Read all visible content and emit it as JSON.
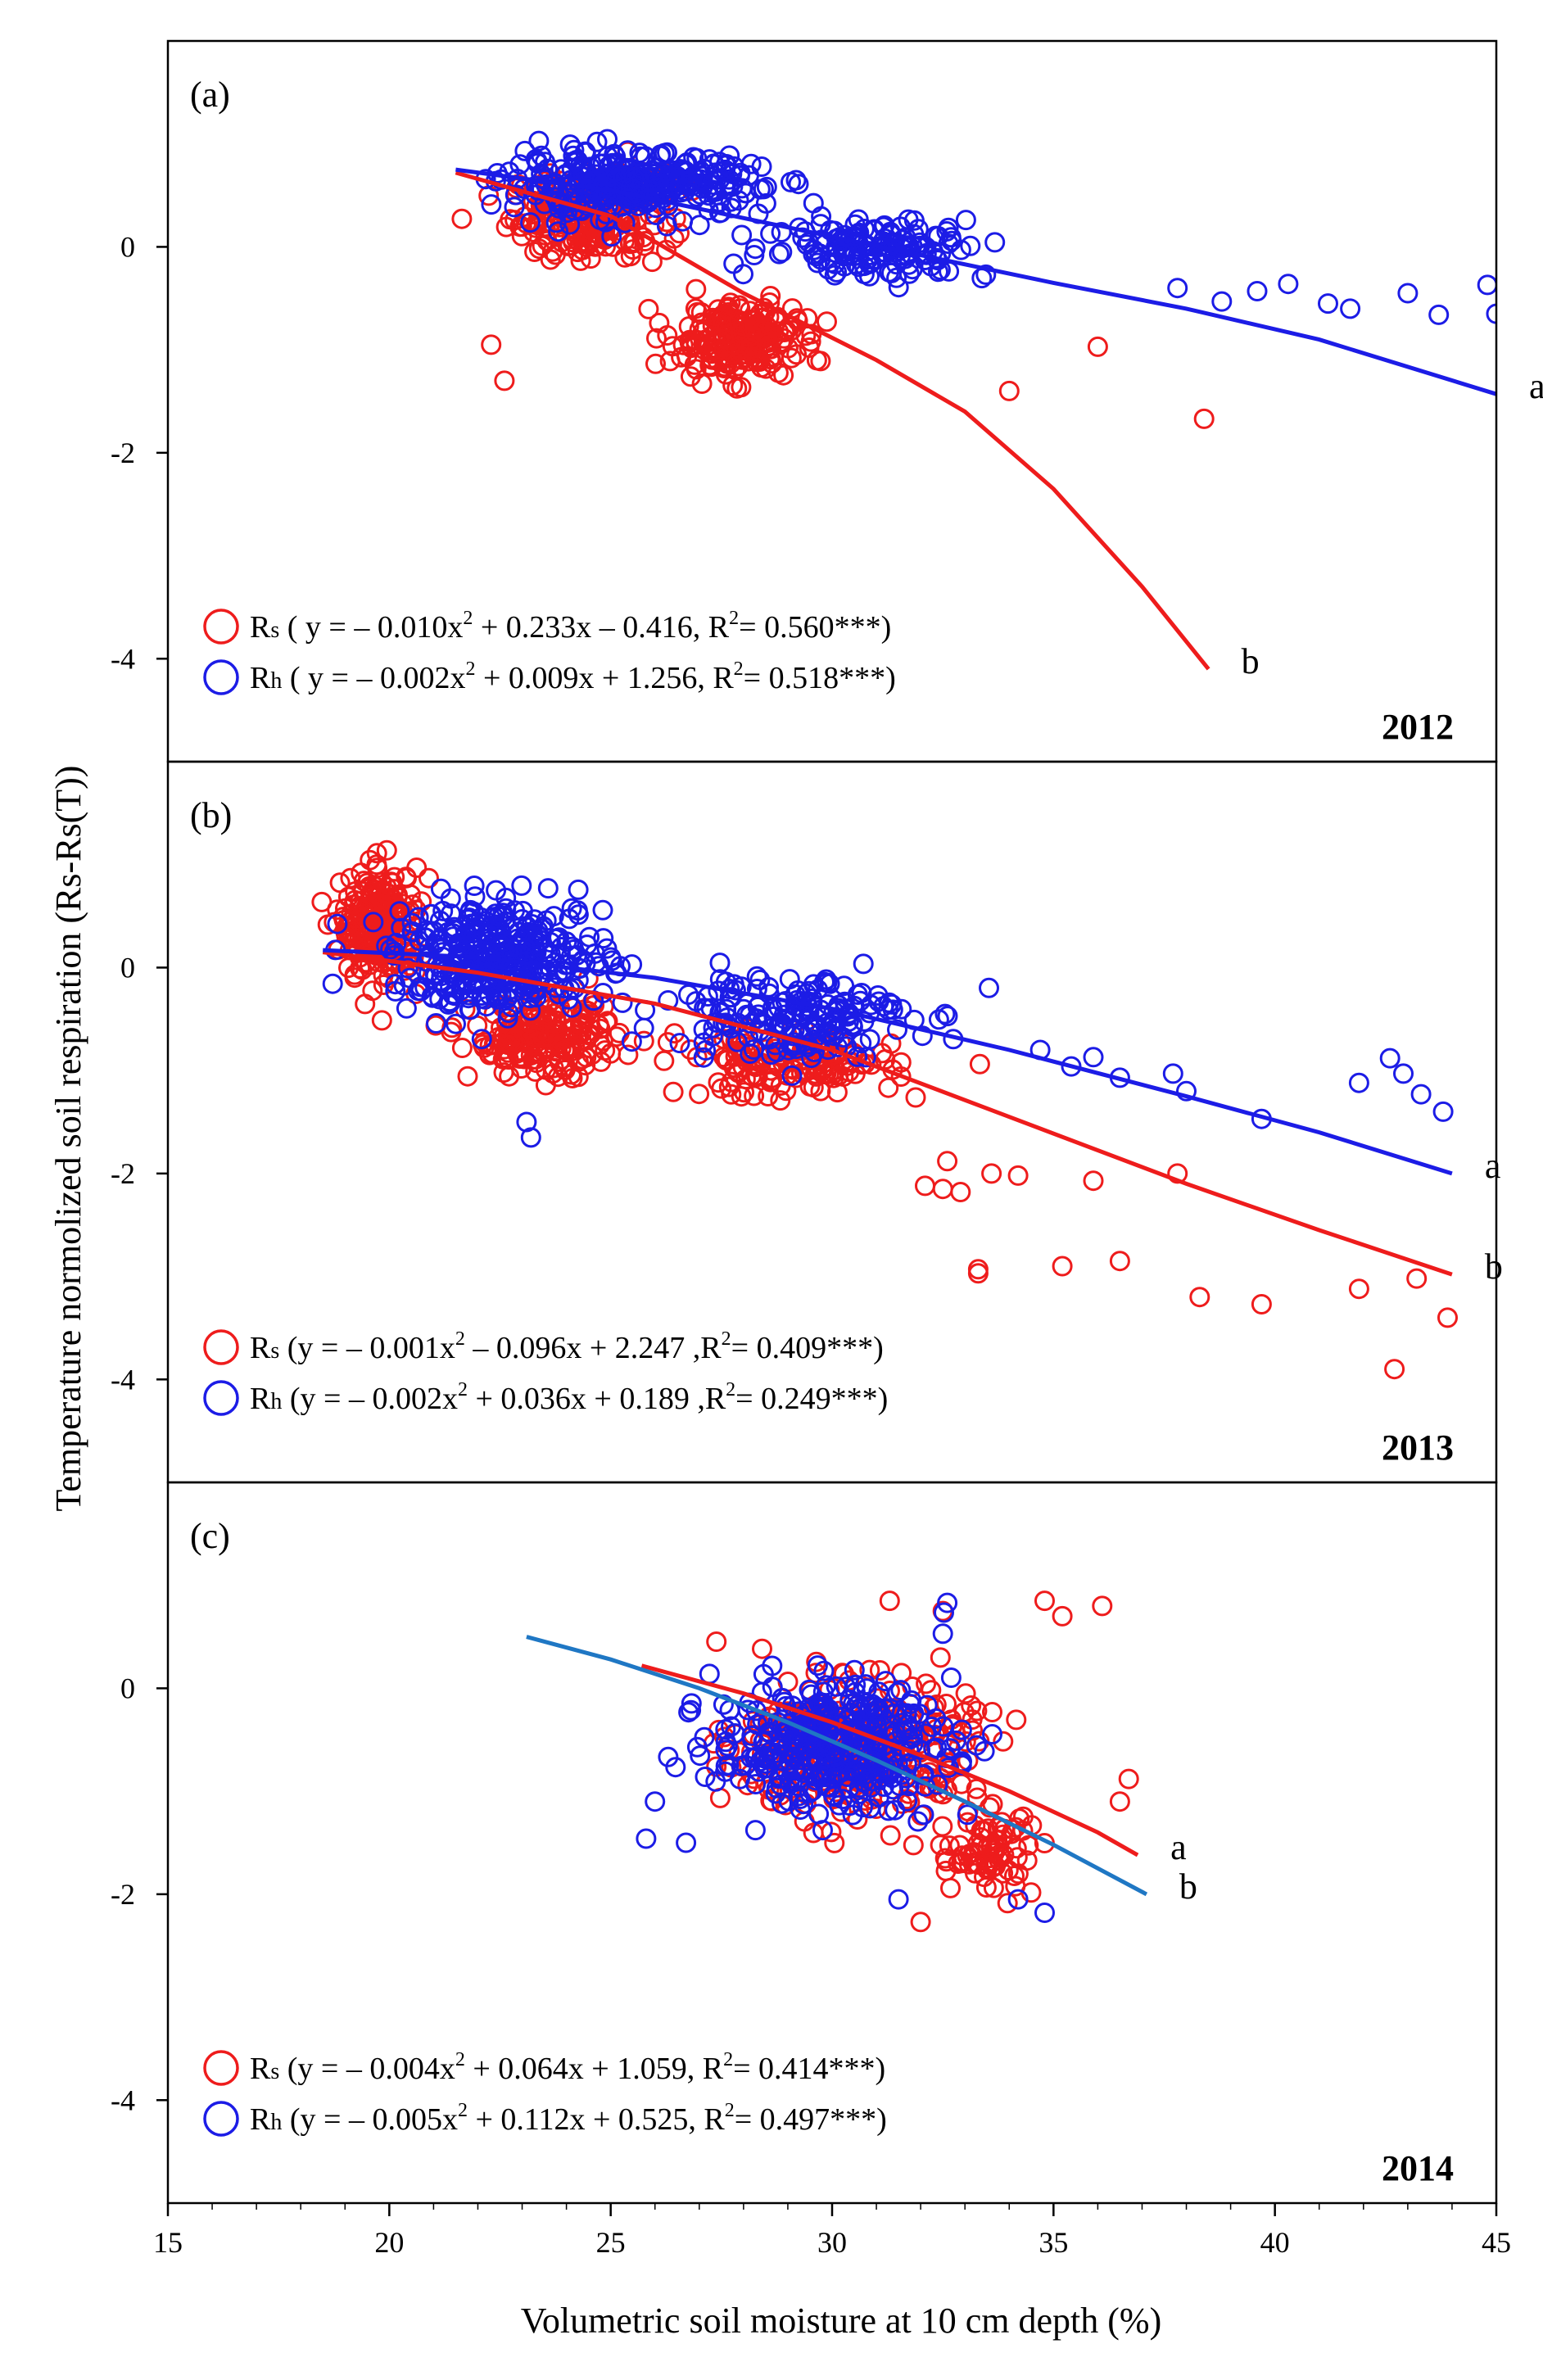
{
  "chart_data": {
    "type": "scatter",
    "x_axis": {
      "label": "Volumetric soil moisture at 10 cm depth (%)",
      "range": [
        15,
        45
      ],
      "ticks": [
        15,
        20,
        25,
        30,
        35,
        40,
        45
      ],
      "tick_labels": [
        "15",
        "20",
        "25",
        "30",
        "35",
        "40",
        "45"
      ]
    },
    "y_axis": {
      "label": "Temperature normolized soil respiration (Rs-Rs(T))",
      "range": [
        -5,
        2
      ],
      "ticks": [
        -4,
        -2,
        0
      ],
      "tick_labels": [
        "-4",
        "-2",
        "0"
      ]
    },
    "colors": {
      "Rs": "#ee1c1c",
      "Rh": "#1c1ce6",
      "Rh_fit_2014": "#1f77c4"
    },
    "panels": [
      {
        "id": "a",
        "label": "(a)",
        "year": "2012",
        "legend": [
          {
            "series": "Rs",
            "prefix": "R",
            "sub": "s",
            "text_before": " ( y = – 0.010x",
            "text_after": " + 0.233x – 0.416, R",
            "text_end": "= 0.560***)"
          },
          {
            "series": "Rh",
            "prefix": "R",
            "sub": "h",
            "text_before": " ( y = – 0.002x",
            "text_after": " + 0.009x + 1.256, R",
            "text_end": "= 0.518***)"
          }
        ],
        "fits": [
          {
            "series": "Rs",
            "letter": "b",
            "x_range": [
              21.5,
              38.5
            ],
            "points": [
              [
                21.5,
                0.72
              ],
              [
                25,
                0.3
              ],
              [
                28,
                -0.45
              ],
              [
                31,
                -1.1
              ],
              [
                33,
                -1.6
              ],
              [
                35,
                -2.35
              ],
              [
                37,
                -3.3
              ],
              [
                38.5,
                -4.1
              ]
            ]
          },
          {
            "series": "Rh",
            "letter": "a",
            "x_range": [
              21.5,
              45
            ],
            "points": [
              [
                21.5,
                0.75
              ],
              [
                25,
                0.55
              ],
              [
                30,
                0.1
              ],
              [
                35,
                -0.35
              ],
              [
                38,
                -0.6
              ],
              [
                41,
                -0.9
              ],
              [
                45,
                -1.43
              ]
            ]
          }
        ],
        "clusters": [
          {
            "series": "Rs",
            "cx": 24.5,
            "cy": 0.3,
            "sx": 1.6,
            "sy": 0.35,
            "n": 220
          },
          {
            "series": "Rs",
            "cx": 27.8,
            "cy": -0.9,
            "sx": 1.3,
            "sy": 0.3,
            "n": 220
          },
          {
            "series": "Rh",
            "cx": 25.5,
            "cy": 0.6,
            "sx": 2.6,
            "sy": 0.25,
            "n": 320
          },
          {
            "series": "Rh",
            "cx": 31,
            "cy": 0.0,
            "sx": 2.3,
            "sy": 0.25,
            "n": 150
          }
        ],
        "extra_points": [
          {
            "series": "Rs",
            "x": 38.4,
            "y": -1.67
          },
          {
            "series": "Rs",
            "x": 34.0,
            "y": -1.4
          },
          {
            "series": "Rs",
            "x": 36.0,
            "y": -0.97
          },
          {
            "series": "Rs",
            "x": 22.6,
            "y": -1.3
          },
          {
            "series": "Rs",
            "x": 22.3,
            "y": -0.95
          },
          {
            "series": "Rh",
            "x": 44.8,
            "y": -0.37
          },
          {
            "series": "Rh",
            "x": 45.0,
            "y": -0.65
          },
          {
            "series": "Rh",
            "x": 43.7,
            "y": -0.66
          },
          {
            "series": "Rh",
            "x": 43.0,
            "y": -0.45
          },
          {
            "series": "Rh",
            "x": 41.7,
            "y": -0.6
          },
          {
            "series": "Rh",
            "x": 41.2,
            "y": -0.55
          },
          {
            "series": "Rh",
            "x": 40.3,
            "y": -0.36
          },
          {
            "series": "Rh",
            "x": 39.6,
            "y": -0.43
          },
          {
            "series": "Rh",
            "x": 38.8,
            "y": -0.53
          },
          {
            "series": "Rh",
            "x": 37.8,
            "y": -0.4
          }
        ]
      },
      {
        "id": "b",
        "label": "(b)",
        "year": "2013",
        "legend": [
          {
            "series": "Rs",
            "prefix": "R",
            "sub": "s",
            "text_before": " (y = – 0.001x",
            "text_after": " – 0.096x + 2.247 ,R",
            "text_end": "= 0.409***)"
          },
          {
            "series": "Rh",
            "prefix": "R",
            "sub": "h",
            "text_before": " (y = – 0.002x",
            "text_after": " + 0.036x + 0.189 ,R",
            "text_end": "= 0.249***)"
          }
        ],
        "fits": [
          {
            "series": "Rs",
            "letter": "b",
            "x_range": [
              18.5,
              44
            ],
            "points": [
              [
                18.5,
                0.15
              ],
              [
                22,
                -0.05
              ],
              [
                26,
                -0.35
              ],
              [
                30,
                -0.8
              ],
              [
                34,
                -1.45
              ],
              [
                38,
                -2.1
              ],
              [
                41,
                -2.55
              ],
              [
                44,
                -2.98
              ]
            ]
          },
          {
            "series": "Rh",
            "letter": "a",
            "x_range": [
              18.5,
              44
            ],
            "points": [
              [
                18.5,
                0.17
              ],
              [
                22,
                0.1
              ],
              [
                26,
                -0.1
              ],
              [
                30,
                -0.4
              ],
              [
                34,
                -0.8
              ],
              [
                38,
                -1.25
              ],
              [
                41,
                -1.6
              ],
              [
                44,
                -2.0
              ]
            ]
          }
        ],
        "clusters": [
          {
            "series": "Rs",
            "cx": 19.8,
            "cy": 0.4,
            "sx": 0.8,
            "sy": 0.45,
            "n": 220
          },
          {
            "series": "Rs",
            "cx": 23.5,
            "cy": -0.7,
            "sx": 1.5,
            "sy": 0.3,
            "n": 200
          },
          {
            "series": "Rs",
            "cx": 29.0,
            "cy": -0.95,
            "sx": 2.2,
            "sy": 0.25,
            "n": 150
          },
          {
            "series": "Rh",
            "cx": 22.5,
            "cy": 0.1,
            "sx": 2.2,
            "sy": 0.45,
            "n": 350
          },
          {
            "series": "Rh",
            "cx": 29.0,
            "cy": -0.45,
            "sx": 2.5,
            "sy": 0.35,
            "n": 180
          }
        ],
        "extra_points": [
          {
            "series": "Rs",
            "x": 42.7,
            "y": -3.9
          },
          {
            "series": "Rs",
            "x": 43.9,
            "y": -3.4
          },
          {
            "series": "Rs",
            "x": 41.9,
            "y": -3.12
          },
          {
            "series": "Rs",
            "x": 43.2,
            "y": -3.02
          },
          {
            "series": "Rs",
            "x": 39.7,
            "y": -3.27
          },
          {
            "series": "Rs",
            "x": 38.3,
            "y": -3.2
          },
          {
            "series": "Rs",
            "x": 36.5,
            "y": -2.85
          },
          {
            "series": "Rs",
            "x": 35.2,
            "y": -2.9
          },
          {
            "series": "Rs",
            "x": 33.3,
            "y": -2.93
          },
          {
            "series": "Rs",
            "x": 33.3,
            "y": -2.97
          },
          {
            "series": "Rs",
            "x": 37.8,
            "y": -2.0
          },
          {
            "series": "Rs",
            "x": 35.9,
            "y": -2.07
          },
          {
            "series": "Rs",
            "x": 34.2,
            "y": -2.02
          },
          {
            "series": "Rs",
            "x": 33.6,
            "y": -2.0
          },
          {
            "series": "Rs",
            "x": 32.5,
            "y": -2.15
          },
          {
            "series": "Rs",
            "x": 32.9,
            "y": -2.18
          },
          {
            "series": "Rs",
            "x": 32.1,
            "y": -2.12
          },
          {
            "series": "Rs",
            "x": 32.6,
            "y": -1.88
          },
          {
            "series": "Rh",
            "x": 43.8,
            "y": -1.4
          },
          {
            "series": "Rh",
            "x": 43.3,
            "y": -1.23
          },
          {
            "series": "Rh",
            "x": 42.9,
            "y": -1.03
          },
          {
            "series": "Rh",
            "x": 42.6,
            "y": -0.88
          },
          {
            "series": "Rh",
            "x": 41.9,
            "y": -1.12
          },
          {
            "series": "Rh",
            "x": 39.7,
            "y": -1.47
          },
          {
            "series": "Rh",
            "x": 38.0,
            "y": -1.2
          },
          {
            "series": "Rh",
            "x": 37.7,
            "y": -1.03
          },
          {
            "series": "Rh",
            "x": 36.5,
            "y": -1.07
          },
          {
            "series": "Rh",
            "x": 35.9,
            "y": -0.87
          },
          {
            "series": "Rh",
            "x": 35.4,
            "y": -0.96
          },
          {
            "series": "Rh",
            "x": 34.7,
            "y": -0.8
          },
          {
            "series": "Rh",
            "x": 23.1,
            "y": -1.5
          },
          {
            "series": "Rh",
            "x": 23.2,
            "y": -1.65
          }
        ]
      },
      {
        "id": "c",
        "label": "(c)",
        "year": "2014",
        "legend": [
          {
            "series": "Rs",
            "prefix": "R",
            "sub": "s",
            "text_before": " (y = – 0.004x",
            "text_after": " + 0.064x + 1.059, R",
            "text_end": "= 0.414***)"
          },
          {
            "series": "Rh",
            "prefix": "R",
            "sub": "h",
            "text_before": " (y = – 0.005x",
            "text_after": " + 0.112x + 0.525, R",
            "text_end": "= 0.497***)"
          }
        ],
        "fits": [
          {
            "series": "Rs",
            "letter": "a",
            "x_range": [
              25.7,
              36.9
            ],
            "points": [
              [
                25.7,
                0.22
              ],
              [
                28,
                -0.05
              ],
              [
                30,
                -0.33
              ],
              [
                32,
                -0.65
              ],
              [
                34,
                -1.0
              ],
              [
                36,
                -1.4
              ],
              [
                36.9,
                -1.62
              ]
            ]
          },
          {
            "series": "Rh_fit_2014",
            "letter": "b",
            "x_range": [
              23.1,
              37.1
            ],
            "points": [
              [
                23.1,
                0.5
              ],
              [
                25,
                0.28
              ],
              [
                27,
                0.0
              ],
              [
                29,
                -0.33
              ],
              [
                31,
                -0.7
              ],
              [
                33,
                -1.1
              ],
              [
                35,
                -1.52
              ],
              [
                37.1,
                -2.0
              ]
            ]
          }
        ],
        "clusters": [
          {
            "series": "Rs",
            "cx": 30.5,
            "cy": -0.6,
            "sx": 2.4,
            "sy": 0.55,
            "n": 320
          },
          {
            "series": "Rs",
            "cx": 33.5,
            "cy": -1.6,
            "sx": 1.0,
            "sy": 0.35,
            "n": 80
          },
          {
            "series": "Rh",
            "cx": 30.0,
            "cy": -0.55,
            "sx": 2.4,
            "sy": 0.5,
            "n": 380
          }
        ],
        "extra_points": [
          {
            "series": "Rs",
            "x": 34.8,
            "y": 0.85
          },
          {
            "series": "Rs",
            "x": 36.1,
            "y": 0.8
          },
          {
            "series": "Rs",
            "x": 31.3,
            "y": 0.85
          },
          {
            "series": "Rs",
            "x": 32.5,
            "y": 0.75
          },
          {
            "series": "Rs",
            "x": 35.2,
            "y": 0.7
          },
          {
            "series": "Rs",
            "x": 36.7,
            "y": -0.88
          },
          {
            "series": "Rs",
            "x": 36.5,
            "y": -1.1
          },
          {
            "series": "Rs",
            "x": 32.0,
            "y": -2.27
          },
          {
            "series": "Rh",
            "x": 32.6,
            "y": 0.83
          },
          {
            "series": "Rh",
            "x": 32.5,
            "y": 0.53
          },
          {
            "series": "Rh",
            "x": 25.8,
            "y": -1.46
          },
          {
            "series": "Rh",
            "x": 26.7,
            "y": -1.5
          },
          {
            "series": "Rh",
            "x": 26.0,
            "y": -1.1
          },
          {
            "series": "Rh",
            "x": 34.8,
            "y": -2.18
          },
          {
            "series": "Rh",
            "x": 34.2,
            "y": -2.05
          },
          {
            "series": "Rh",
            "x": 31.5,
            "y": -2.05
          }
        ]
      }
    ]
  }
}
